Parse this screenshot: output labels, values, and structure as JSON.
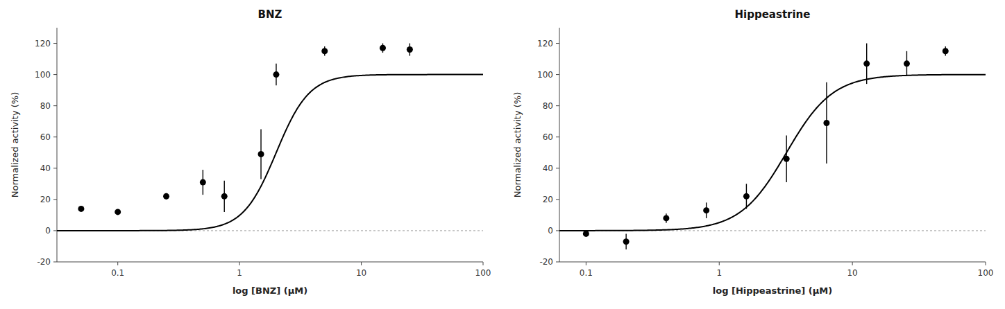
{
  "chart_data": [
    {
      "type": "scatter",
      "title": "BNZ",
      "xlabel": "log [BNZ] (μM)",
      "ylabel": "Normalized activity (%)",
      "x": [
        0.05,
        0.1,
        0.25,
        0.5,
        0.75,
        1.5,
        2.0,
        5.0,
        15.0,
        25.0
      ],
      "values": [
        14,
        12,
        22,
        31,
        22,
        49,
        100,
        115,
        117,
        116
      ],
      "errors": [
        1,
        1,
        2,
        8,
        10,
        16,
        7,
        3,
        3,
        4
      ],
      "fit": {
        "bottom": 0,
        "top": 100,
        "ec50": 2.0,
        "hill": 3.2
      },
      "color": "#000000",
      "log": "x",
      "xlim": [
        0.03162277660168379,
        100
      ],
      "xticks": [
        0.1,
        1,
        10,
        100
      ],
      "ylim": [
        -20,
        130
      ],
      "yticks": [
        -20,
        0,
        20,
        40,
        60,
        80,
        100,
        120
      ],
      "grid": false
    },
    {
      "type": "scatter",
      "title": "Hippeastrine",
      "xlabel": "log [Hippeastrine] (μM)",
      "ylabel": "Normalized activity (%)",
      "x": [
        0.1,
        0.2,
        0.4,
        0.8,
        1.6,
        3.2,
        6.4,
        12.8,
        25.6,
        50.0
      ],
      "values": [
        -2,
        -7,
        8,
        13,
        22,
        46,
        69,
        107,
        107,
        115
      ],
      "errors": [
        1,
        5,
        3,
        5,
        8,
        15,
        26,
        13,
        8,
        3
      ],
      "fit": {
        "bottom": 0,
        "top": 100,
        "ec50": 3.2,
        "hill": 2.5
      },
      "color": "#000000",
      "log": "x",
      "xlim": [
        0.06309573444801933,
        100
      ],
      "xticks": [
        0.1,
        1,
        10,
        100
      ],
      "ylim": [
        -20,
        130
      ],
      "yticks": [
        -20,
        0,
        20,
        40,
        60,
        80,
        100,
        120
      ],
      "grid": false
    }
  ]
}
